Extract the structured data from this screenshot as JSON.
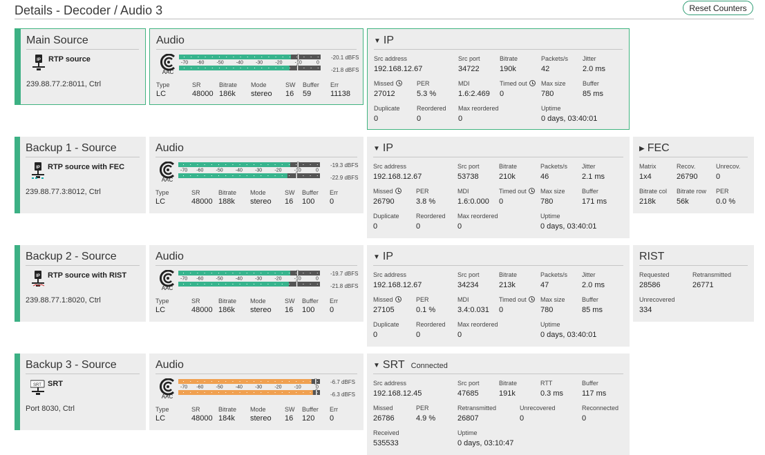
{
  "page": {
    "title": "Details - Decoder / Audio 3",
    "reset_label": "Reset Counters"
  },
  "colors": {
    "accent": "#3cb084",
    "meter_green": "#37b48d",
    "meter_orange": "#f0a050",
    "panel_bg": "#ededed"
  },
  "labels": {
    "audio_title": "Audio",
    "ip_title": "IP",
    "type": "Type",
    "sr": "SR",
    "bitrate": "Bitrate",
    "mode": "Mode",
    "sw": "SW",
    "buffer": "Buffer",
    "err": "Err",
    "src_address": "Src address",
    "src_port": "Src port",
    "packets_s": "Packets/s",
    "jitter": "Jitter",
    "missed": "Missed",
    "per": "PER",
    "mdi": "MDI",
    "timed_out": "Timed out",
    "max_size": "Max size",
    "duplicate": "Duplicate",
    "reordered": "Reordered",
    "max_reordered": "Max reordered",
    "uptime": "Uptime",
    "meter_ticks": [
      "-70",
      "-60",
      "-50",
      "-40",
      "-30",
      "-20",
      "-10",
      "0"
    ],
    "aac": "AAC",
    "rtt": "RTT",
    "retransmitted": "Retransmitted",
    "unrecovered": "Unrecovered",
    "reconnected": "Reconnected",
    "received": "Received"
  },
  "rows": [
    {
      "source": {
        "title": "Main Source",
        "name": "RTP source",
        "address": "239.88.77.2:8011, Ctrl",
        "icon": "rtp-icon"
      },
      "audio": {
        "type": "LC",
        "sr": "48000",
        "bitrate": "186k",
        "mode": "stereo",
        "sw": "16",
        "buffer": "59",
        "err": "11138",
        "meter": [
          {
            "level": 0.79,
            "peak": 0.837,
            "label": "-20.1 dBFS"
          },
          {
            "level": 0.78,
            "peak": 0.832,
            "label": "-21.8 dBFS"
          }
        ]
      },
      "ip": {
        "src_address": "192.168.12.67",
        "src_port": "34722",
        "bitrate": "190k",
        "packets": "42",
        "jitter": "2.0 ms",
        "missed": "27012",
        "per": "5.3 %",
        "mdi": "1.6:2.469",
        "timed_out": "0",
        "max_size": "780",
        "buffer": "85 ms",
        "duplicate": "0",
        "reordered": "0",
        "max_reordered": "0",
        "uptime": "0 days, 03:40:01"
      }
    },
    {
      "source": {
        "title": "Backup 1 - Source",
        "name": "RTP source with FEC",
        "address": "239.88.77.3:8012, Ctrl",
        "icon": "rtp-fec-icon"
      },
      "audio": {
        "type": "LC",
        "sr": "48000",
        "bitrate": "188k",
        "mode": "stereo",
        "sw": "16",
        "buffer": "100",
        "err": "0",
        "meter": [
          {
            "level": 0.79,
            "peak": 0.84,
            "label": "-19.3 dBFS"
          },
          {
            "level": 0.77,
            "peak": 0.83,
            "label": "-22.9 dBFS"
          }
        ]
      },
      "ip": {
        "src_address": "192.168.12.67",
        "src_port": "53738",
        "bitrate": "210k",
        "packets": "46",
        "jitter": "2.1 ms",
        "missed": "26790",
        "per": "3.8 %",
        "mdi": "1.6:0.000",
        "timed_out": "0",
        "max_size": "780",
        "buffer": "171 ms",
        "duplicate": "0",
        "reordered": "0",
        "max_reordered": "0",
        "uptime": "0 days, 03:40:01"
      },
      "extra": {
        "kind": "fec",
        "title": "FEC",
        "matrix_label": "Matrix",
        "matrix": "1x4",
        "recov_label": "Recov.",
        "recov": "26790",
        "unrecov_label": "Unrecov.",
        "unrecov": "0",
        "bitrate_col_label": "Bitrate col",
        "bitrate_col": "218k",
        "bitrate_row_label": "Bitrate row",
        "bitrate_row": "56k",
        "per_label": "PER",
        "per": "0.0 %"
      }
    },
    {
      "source": {
        "title": "Backup 2 - Source",
        "name": "RTP source with RIST",
        "address": "239.88.77.1:8020, Ctrl",
        "icon": "rtp-rist-icon"
      },
      "audio": {
        "type": "LC",
        "sr": "48000",
        "bitrate": "186k",
        "mode": "stereo",
        "sw": "16",
        "buffer": "100",
        "err": "0",
        "meter": [
          {
            "level": 0.79,
            "peak": 0.837,
            "label": "-19.7 dBFS"
          },
          {
            "level": 0.78,
            "peak": 0.832,
            "label": "-21.8 dBFS"
          }
        ]
      },
      "ip": {
        "src_address": "192.168.12.67",
        "src_port": "34234",
        "bitrate": "213k",
        "packets": "47",
        "jitter": "2.0 ms",
        "missed": "27105",
        "per": "0.1 %",
        "mdi": "3.4:0.031",
        "timed_out": "0",
        "max_size": "780",
        "buffer": "85 ms",
        "duplicate": "0",
        "reordered": "0",
        "max_reordered": "0",
        "uptime": "0 days, 03:40:01"
      },
      "extra": {
        "kind": "rist",
        "title": "RIST",
        "requested_label": "Requested",
        "requested": "28586",
        "retransmitted_label": "Retransmitted",
        "retransmitted": "26771",
        "unrecovered_label": "Unrecovered",
        "unrecovered": "334"
      }
    },
    {
      "source": {
        "title": "Backup 3 - Source",
        "name": "SRT",
        "address": "Port 8030, Ctrl",
        "icon": "srt-icon",
        "icon_text": "SRT"
      },
      "audio": {
        "type": "LC",
        "sr": "48000",
        "bitrate": "184k",
        "mode": "stereo",
        "sw": "16",
        "buffer": "120",
        "err": "0",
        "meter": [
          {
            "level": 0.94,
            "peak": 0.965,
            "label": "-6.7 dBFS"
          },
          {
            "level": 0.95,
            "peak": 0.97,
            "label": "-6.3 dBFS"
          }
        ]
      },
      "srt": {
        "title": "SRT",
        "status": "Connected",
        "src_address": "192.168.12.45",
        "src_port": "47685",
        "bitrate": "191k",
        "rtt": "0.3 ms",
        "buffer": "117 ms",
        "missed": "26786",
        "per": "4.9 %",
        "retransmitted": "26807",
        "unrecovered": "0",
        "reconnected": "0",
        "received": "535533",
        "uptime": "0 days, 03:10:47"
      }
    }
  ]
}
